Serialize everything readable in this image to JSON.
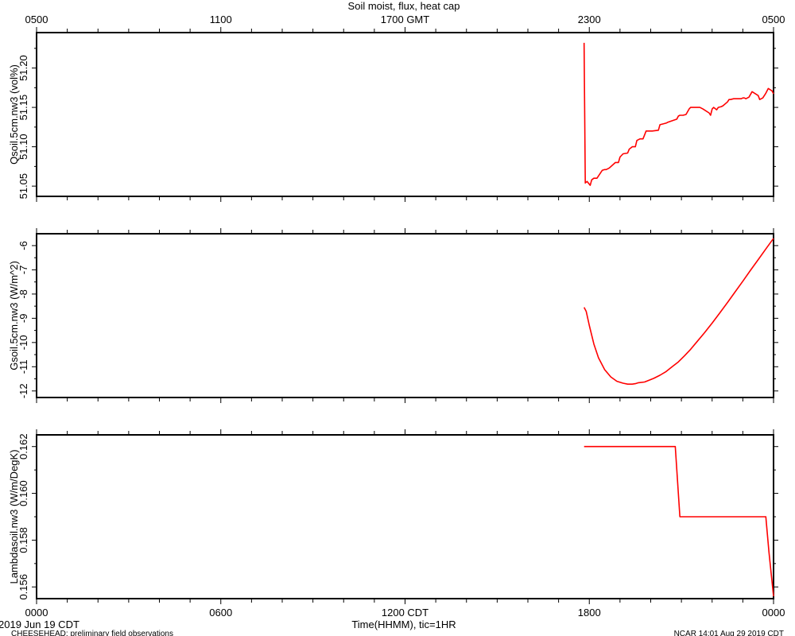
{
  "title": "Soil moist, flux, heat cap",
  "top_axis": {
    "label_suffix": "GMT",
    "ticks": [
      {
        "hour": 0,
        "label": "0500"
      },
      {
        "hour": 6,
        "label": "1100"
      },
      {
        "hour": 12,
        "label": "1700 GMT"
      },
      {
        "hour": 18,
        "label": "2300"
      },
      {
        "hour": 24,
        "label": "0500"
      }
    ]
  },
  "bottom_axis": {
    "xlabel": "Time(HHMM), tic=1HR",
    "ticks": [
      {
        "hour": 0,
        "label": "0000"
      },
      {
        "hour": 6,
        "label": "0600"
      },
      {
        "hour": 12,
        "label": "1200 CDT"
      },
      {
        "hour": 18,
        "label": "1800"
      },
      {
        "hour": 24,
        "label": "0000"
      }
    ]
  },
  "footer": {
    "date": "2019 Jun 19 CDT",
    "project": "CHEESEHEAD: preliminary field observations",
    "stamp": "NCAR 14:01 Aug 29 2019 CDT"
  },
  "colors": {
    "series": "#ff0000",
    "axis": "#000000",
    "background": "#ffffff"
  },
  "chart_data": [
    {
      "type": "line",
      "ylabel": "Qsoil.5cm.nw3 (vol%)",
      "xlim": [
        0,
        24
      ],
      "ylim": [
        51.037,
        51.245
      ],
      "yticks": [
        51.05,
        51.1,
        51.15,
        51.2
      ],
      "ytick_labels": [
        "51.05",
        "51.10",
        "51.15",
        "51.20"
      ],
      "x_unit": "hours since 0000 CDT 2019 Jun 19",
      "series": [
        {
          "x": [
            17.83,
            17.87,
            17.93,
            18.03,
            18.08,
            18.15,
            18.25,
            18.42,
            18.5,
            18.55,
            18.65,
            18.85,
            18.95,
            19.0,
            19.1,
            19.25,
            19.3,
            19.4,
            19.5,
            19.55,
            19.65,
            19.75,
            19.8,
            19.85,
            20.0,
            20.05,
            20.25,
            20.3,
            20.5,
            20.55,
            20.85,
            20.9,
            20.95,
            21.05,
            21.15,
            21.25,
            21.3,
            21.6,
            21.7,
            21.9,
            21.95,
            22.0,
            22.05,
            22.15,
            22.2,
            22.3,
            22.35,
            22.5,
            22.55,
            22.6,
            22.7,
            22.95,
            23.0,
            23.05,
            23.1,
            23.2,
            23.3,
            23.5,
            23.55,
            23.65,
            23.75,
            23.83,
            23.95,
            24.0
          ],
          "y": [
            51.232,
            51.054,
            51.056,
            51.051,
            51.058,
            51.06,
            51.06,
            51.07,
            51.071,
            51.071,
            51.073,
            51.08,
            51.08,
            51.087,
            51.091,
            51.092,
            51.097,
            51.1,
            51.1,
            51.108,
            51.11,
            51.11,
            51.115,
            51.12,
            51.12,
            51.12,
            51.121,
            51.128,
            51.13,
            51.131,
            51.135,
            51.139,
            51.14,
            51.14,
            51.141,
            51.148,
            51.15,
            51.15,
            51.148,
            51.143,
            51.14,
            51.148,
            51.15,
            51.147,
            51.15,
            51.151,
            51.152,
            51.157,
            51.16,
            51.16,
            51.161,
            51.161,
            51.162,
            51.162,
            51.161,
            51.163,
            51.17,
            51.165,
            51.16,
            51.162,
            51.168,
            51.174,
            51.171,
            51.167
          ]
        }
      ]
    },
    {
      "type": "line",
      "ylabel": "Gsoil.5cm.nw3 (W/m^2)",
      "xlim": [
        0,
        24
      ],
      "ylim": [
        -12.27,
        -5.51
      ],
      "yticks": [
        -12,
        -11,
        -10,
        -9,
        -8,
        -7,
        -6
      ],
      "ytick_labels": [
        "-12",
        "-11",
        "-10",
        "-9",
        "-8",
        "-7",
        "-6"
      ],
      "x_unit": "hours since 0000 CDT 2019 Jun 19",
      "series": [
        {
          "x": [
            17.83,
            17.9,
            18.0,
            18.15,
            18.3,
            18.5,
            18.7,
            18.9,
            19.1,
            19.25,
            19.4,
            19.5,
            19.6,
            19.8,
            19.9,
            20.1,
            20.3,
            20.5,
            20.7,
            20.9,
            21.1,
            21.3,
            21.5,
            21.75,
            22.0,
            22.25,
            22.5,
            22.75,
            23.0,
            23.25,
            23.5,
            23.75,
            24.0
          ],
          "y": [
            -8.55,
            -8.72,
            -9.3,
            -10.06,
            -10.63,
            -11.12,
            -11.42,
            -11.6,
            -11.68,
            -11.72,
            -11.72,
            -11.7,
            -11.66,
            -11.63,
            -11.58,
            -11.48,
            -11.35,
            -11.2,
            -11.0,
            -10.8,
            -10.55,
            -10.28,
            -9.98,
            -9.6,
            -9.2,
            -8.78,
            -8.35,
            -7.91,
            -7.47,
            -7.02,
            -6.58,
            -6.14,
            -5.7
          ]
        }
      ]
    },
    {
      "type": "line",
      "ylabel": "Lambdasoil.nw3 (W/m/DegK)",
      "xlim": [
        0,
        24
      ],
      "ylim": [
        0.1555,
        0.1625
      ],
      "yticks": [
        0.156,
        0.158,
        0.16,
        0.162
      ],
      "ytick_labels": [
        "0.156",
        "0.158",
        "0.160",
        "0.162"
      ],
      "x_unit": "hours since 0000 CDT 2019 Jun 19",
      "series": [
        {
          "x": [
            17.83,
            20.8,
            20.95,
            23.75,
            23.85,
            24.0
          ],
          "y": [
            0.162,
            0.162,
            0.159,
            0.159,
            0.1575,
            0.1556
          ]
        }
      ]
    }
  ]
}
